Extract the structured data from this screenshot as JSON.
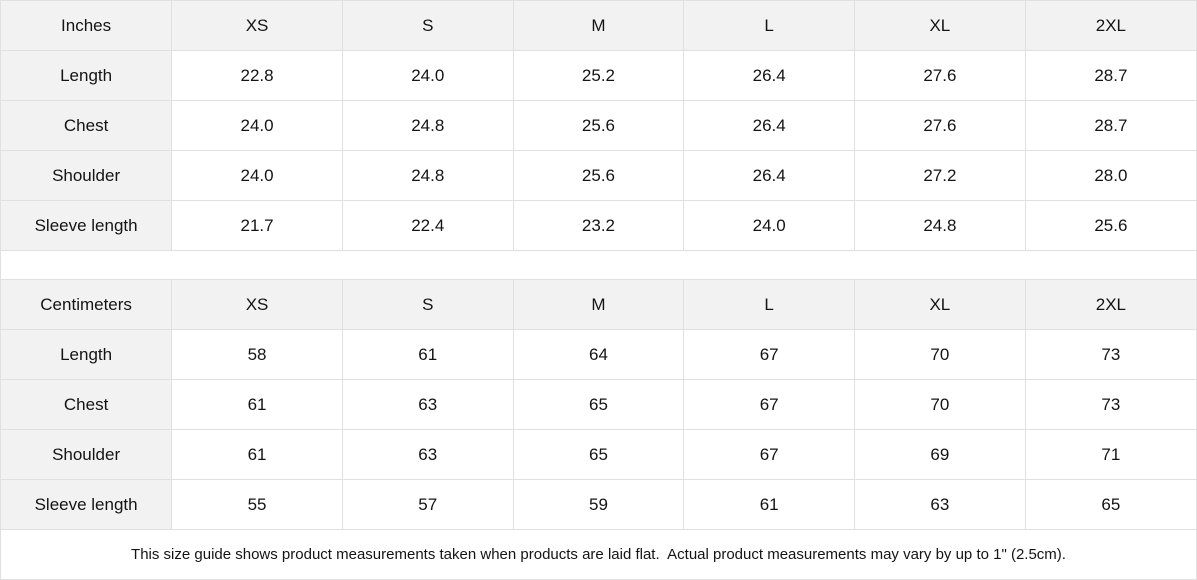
{
  "colors": {
    "header_bg": "#f2f2f2",
    "label_col_bg": "#f2f2f2",
    "border": "#e0e0e0",
    "text": "#141414",
    "background": "#ffffff"
  },
  "chart_data": [
    {
      "type": "table",
      "unit": "Inches",
      "sizes": [
        "XS",
        "S",
        "M",
        "L",
        "XL",
        "2XL"
      ],
      "rows": [
        {
          "label": "Length",
          "values": [
            "22.8",
            "24.0",
            "25.2",
            "26.4",
            "27.6",
            "28.7"
          ]
        },
        {
          "label": "Chest",
          "values": [
            "24.0",
            "24.8",
            "25.6",
            "26.4",
            "27.6",
            "28.7"
          ]
        },
        {
          "label": "Shoulder",
          "values": [
            "24.0",
            "24.8",
            "25.6",
            "26.4",
            "27.2",
            "28.0"
          ]
        },
        {
          "label": "Sleeve length",
          "values": [
            "21.7",
            "22.4",
            "23.2",
            "24.0",
            "24.8",
            "25.6"
          ]
        }
      ]
    },
    {
      "type": "table",
      "unit": "Centimeters",
      "sizes": [
        "XS",
        "S",
        "M",
        "L",
        "XL",
        "2XL"
      ],
      "rows": [
        {
          "label": "Length",
          "values": [
            "58",
            "61",
            "64",
            "67",
            "70",
            "73"
          ]
        },
        {
          "label": "Chest",
          "values": [
            "61",
            "63",
            "65",
            "67",
            "70",
            "73"
          ]
        },
        {
          "label": "Shoulder",
          "values": [
            "61",
            "63",
            "65",
            "67",
            "69",
            "71"
          ]
        },
        {
          "label": "Sleeve length",
          "values": [
            "55",
            "57",
            "59",
            "61",
            "63",
            "65"
          ]
        }
      ]
    }
  ],
  "footer": {
    "note": "This size guide shows product measurements taken when products are laid flat.  Actual product measurements may vary by up to 1\" (2.5cm)."
  }
}
